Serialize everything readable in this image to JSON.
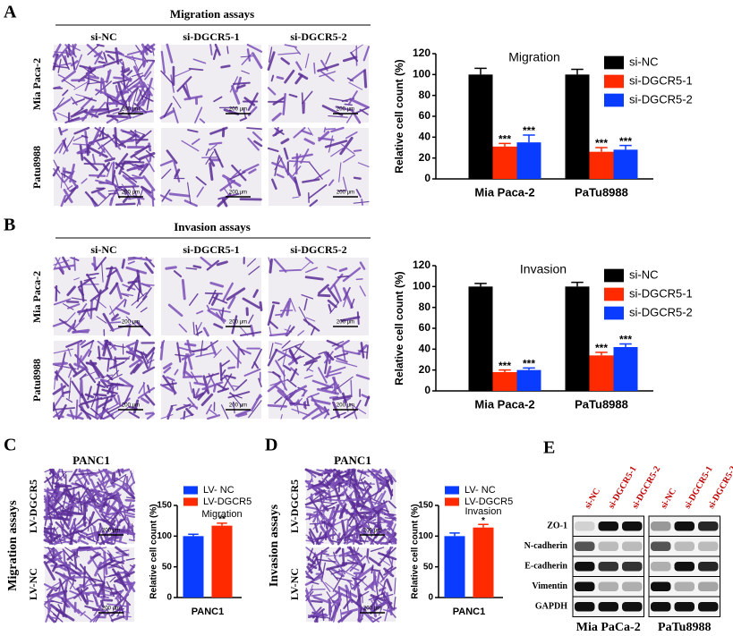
{
  "panel_a": {
    "letter": "A",
    "heading": "Migration assays",
    "columns": [
      "si-NC",
      "si-DGCR5-1",
      "si-DGCR5-2"
    ],
    "rows": [
      "Mia Paca-2",
      "Patu8988"
    ]
  },
  "panel_b": {
    "letter": "B",
    "heading": "Invasion assays",
    "columns": [
      "si-NC",
      "si-DGCR5-1",
      "si-DGCR5-2"
    ],
    "rows": [
      "Mia Paca-2",
      "Patu8988"
    ]
  },
  "panel_c": {
    "letter": "C",
    "heading": "PANC1",
    "side_label": "Migration assays",
    "rows": [
      "LV-DGCR5",
      "LV-NC"
    ]
  },
  "panel_d": {
    "letter": "D",
    "heading": "PANC1",
    "side_label": "Invasion assays",
    "rows": [
      "LV-DGCR5",
      "LV-NC"
    ]
  },
  "panel_e": {
    "letter": "E",
    "lanes": [
      "si-NC",
      "si-DGCR5-1",
      "si-DGCR5-2"
    ],
    "proteins": [
      "ZO-1",
      "N-cadherin",
      "E-cadherin",
      "Vimentin",
      "GAPDH"
    ],
    "cell_lines": [
      "Mia PaCa-2",
      "PaTu8988"
    ]
  },
  "scale_bar": "200 μm",
  "chart_data": [
    {
      "type": "bar",
      "title": "Migration",
      "ylabel": "Relative cell count (%)",
      "categories": [
        "Mia Paca-2",
        "PaTu8988"
      ],
      "series": [
        {
          "name": "si-NC",
          "color": "#000000",
          "values": [
            100,
            100
          ],
          "errors": [
            6,
            5
          ]
        },
        {
          "name": "si-DGCR5-1",
          "color": "#ff2a00",
          "values": [
            31,
            26
          ],
          "errors": [
            3,
            4
          ],
          "annotations": [
            "***",
            "***"
          ]
        },
        {
          "name": "si-DGCR5-2",
          "color": "#0a3cff",
          "values": [
            35,
            28
          ],
          "errors": [
            7,
            4
          ],
          "annotations": [
            "***",
            "***"
          ]
        }
      ],
      "ylim": [
        0,
        120
      ],
      "yticks": [
        0,
        20,
        40,
        60,
        80,
        100,
        120
      ],
      "legend": "right"
    },
    {
      "type": "bar",
      "title": "Invasion",
      "ylabel": "Relative cell count (%)",
      "categories": [
        "Mia Paca-2",
        "PaTu8988"
      ],
      "series": [
        {
          "name": "si-NC",
          "color": "#000000",
          "values": [
            100,
            100
          ],
          "errors": [
            3,
            4
          ]
        },
        {
          "name": "si-DGCR5-1",
          "color": "#ff2a00",
          "values": [
            18,
            34
          ],
          "errors": [
            2,
            3
          ],
          "annotations": [
            "***",
            "***"
          ]
        },
        {
          "name": "si-DGCR5-2",
          "color": "#0a3cff",
          "values": [
            20,
            42
          ],
          "errors": [
            2,
            3
          ],
          "annotations": [
            "***",
            "***"
          ]
        }
      ],
      "ylim": [
        0,
        120
      ],
      "yticks": [
        0,
        20,
        40,
        60,
        80,
        100,
        120
      ],
      "legend": "right"
    },
    {
      "type": "bar",
      "title": "Migration",
      "ylabel": "Relative cell count (%)",
      "categories": [
        "PANC1"
      ],
      "series": [
        {
          "name": "LV- NC",
          "color": "#0a3cff",
          "values": [
            100
          ],
          "errors": [
            3
          ]
        },
        {
          "name": "LV-DGCR5",
          "color": "#ff2a00",
          "values": [
            117
          ],
          "errors": [
            4
          ],
          "annotations": [
            "**"
          ]
        }
      ],
      "ylim": [
        0,
        150
      ],
      "yticks": [
        0,
        50,
        100,
        150
      ],
      "legend": "top"
    },
    {
      "type": "bar",
      "title": "Invasion",
      "ylabel": "Relative cell count (%)",
      "categories": [
        "PANC1"
      ],
      "series": [
        {
          "name": "LV- NC",
          "color": "#0a3cff",
          "values": [
            100
          ],
          "errors": [
            5
          ]
        },
        {
          "name": "LV-DGCR5",
          "color": "#ff2a00",
          "values": [
            114
          ],
          "errors": [
            5
          ],
          "annotations": [
            "*"
          ]
        }
      ],
      "ylim": [
        0,
        150
      ],
      "yticks": [
        0,
        50,
        100,
        150
      ],
      "legend": "top"
    }
  ]
}
